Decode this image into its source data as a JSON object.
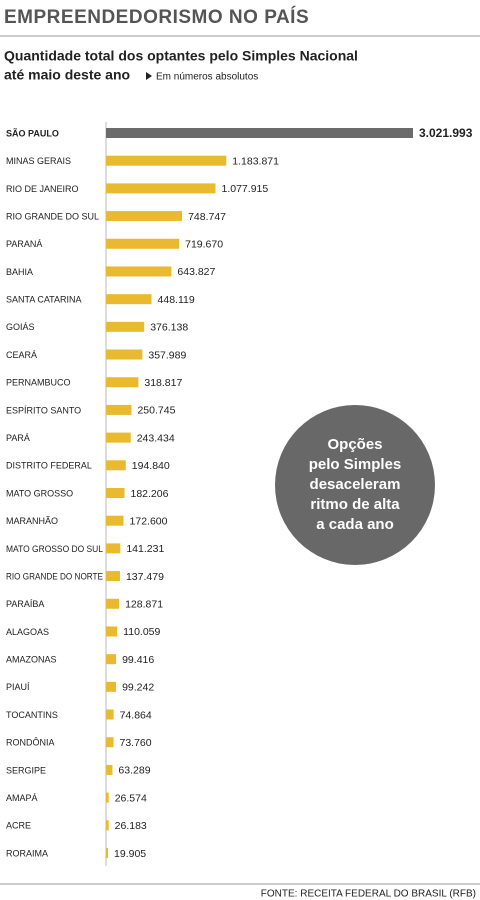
{
  "chart_data": {
    "type": "bar",
    "title": "EMPREENDEDORISMO NO PAÍS",
    "subtitle": [
      "Quantidade total dos optantes pelo Simples Nacional",
      "até maio deste ano"
    ],
    "note": "Em números absolutos",
    "annotation": [
      "Opções",
      "pelo Simples",
      "desaceleram",
      "ritmo de alta",
      "a cada ano"
    ],
    "source": "FONTE: RECEITA FEDERAL DO BRASIL (RFB)",
    "categories": [
      "SÃO PAULO",
      "MINAS GERAIS",
      "RIO DE JANEIRO",
      "RIO GRANDE DO SUL",
      "PARANÁ",
      "BAHIA",
      "SANTA CATARINA",
      "GOIÁS",
      "CEARÁ",
      "PERNAMBUCO",
      "ESPÍRITO SANTO",
      "PARÁ",
      "DISTRITO FEDERAL",
      "MATO GROSSO",
      "MARANHÃO",
      "MATO GROSSO DO SUL",
      "RIO GRANDE DO NORTE",
      "PARAÍBA",
      "ALAGOAS",
      "AMAZONAS",
      "PIAUÍ",
      "TOCANTINS",
      "RONDÔNIA",
      "SERGIPE",
      "AMAPÁ",
      "ACRE",
      "RORAIMA"
    ],
    "values": [
      3021993,
      1183871,
      1077915,
      748747,
      719670,
      643827,
      448119,
      376138,
      357989,
      318817,
      250745,
      243434,
      194840,
      182206,
      172600,
      141231,
      137479,
      128871,
      110059,
      99416,
      99242,
      74864,
      73760,
      63289,
      26574,
      26183,
      19905
    ],
    "value_labels": [
      "3.021.993",
      "1.183.871",
      "1.077.915",
      "748.747",
      "719.670",
      "643.827",
      "448.119",
      "376.138",
      "357.989",
      "318.817",
      "250.745",
      "243.434",
      "194.840",
      "182.206",
      "172.600",
      "141.231",
      "137.479",
      "128.871",
      "110.059",
      "99.416",
      "99.242",
      "74.864",
      "73.760",
      "63.289",
      "26.574",
      "26.183",
      "19.905"
    ],
    "colors": [
      "#6b6b6b",
      "#e9b92f",
      "#e9b92f",
      "#e9b92f",
      "#e9b92f",
      "#e9b92f",
      "#e9b92f",
      "#e9b92f",
      "#e9b92f",
      "#e9b92f",
      "#e9b92f",
      "#e9b92f",
      "#e9b92f",
      "#e9b92f",
      "#e9b92f",
      "#e9b92f",
      "#e9b92f",
      "#e9b92f",
      "#e9b92f",
      "#e9b92f",
      "#e9b92f",
      "#e9b92f",
      "#e9b92f",
      "#e9b92f",
      "#e9b92f",
      "#e9b92f",
      "#e9b92f"
    ]
  }
}
